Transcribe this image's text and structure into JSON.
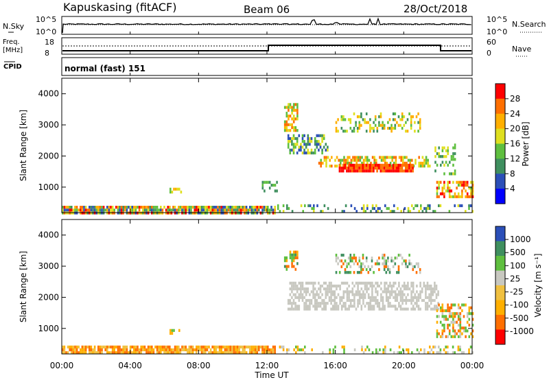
{
  "header": {
    "station": "Kapuskasing (fitACF)",
    "beam": "Beam 06",
    "date": "28/Oct/2018"
  },
  "noise_panel": {
    "left_label": "N.Sky",
    "right_label": "N.Search",
    "left_ticks": [
      "10^5",
      "10^0"
    ],
    "right_ticks": [
      "10^5",
      "10^0"
    ]
  },
  "freq_panel": {
    "left_label_1": "Freq.",
    "left_label_2": "[MHz]",
    "left_label_3": "CPID",
    "right_label": "Nave",
    "left_ticks": [
      "18",
      "8"
    ],
    "right_ticks": [
      "60",
      "0"
    ]
  },
  "cpid_text": "normal (fast) 151",
  "colors": {
    "power": [
      "#0000ff",
      "#2b4fb8",
      "#3f8f5f",
      "#5fbf3f",
      "#dfdf1f",
      "#ffaf00",
      "#ff6f00",
      "#ff0000"
    ],
    "velocity": [
      "#ff0000",
      "#ff6f00",
      "#ffaf00",
      "#f0c040",
      "#c8c8c0",
      "#5fbf3f",
      "#3f8f5f",
      "#2b4fb8"
    ]
  },
  "chart_data": [
    {
      "type": "heatmap",
      "name": "power",
      "ylabel": "Slant Range [km]",
      "yticks": [
        "4000",
        "3000",
        "2000",
        "1000"
      ],
      "ylim": [
        180,
        4500
      ],
      "colorbar_label": "Power [dB]",
      "colorbar_ticks": [
        "28",
        "24",
        "20",
        "16",
        "12",
        "8",
        "4"
      ],
      "colorbar_range": [
        0,
        30
      ],
      "regions": [
        {
          "t": [
            0,
            12.5
          ],
          "r": [
            200,
            400
          ],
          "levels": [
            1,
            2,
            3,
            4,
            5,
            6,
            7
          ],
          "density": 0.9
        },
        {
          "t": [
            6.3,
            7.0
          ],
          "r": [
            870,
            980
          ],
          "levels": [
            3,
            4,
            5
          ],
          "density": 0.6
        },
        {
          "t": [
            11.7,
            12.6
          ],
          "r": [
            900,
            1200
          ],
          "levels": [
            2,
            3
          ],
          "density": 0.5
        },
        {
          "t": [
            13.0,
            13.8
          ],
          "r": [
            2800,
            3700
          ],
          "levels": [
            3,
            4,
            5,
            6
          ],
          "density": 0.6
        },
        {
          "t": [
            13.2,
            15.5
          ],
          "r": [
            2100,
            2700
          ],
          "levels": [
            1,
            2,
            3,
            4
          ],
          "density": 0.55
        },
        {
          "t": [
            15.0,
            21.5
          ],
          "r": [
            1700,
            2000
          ],
          "levels": [
            3,
            4,
            5,
            6
          ],
          "density": 0.55
        },
        {
          "t": [
            16.2,
            20.5
          ],
          "r": [
            1500,
            1750
          ],
          "levels": [
            6,
            7
          ],
          "density": 0.9
        },
        {
          "t": [
            16.0,
            21.0
          ],
          "r": [
            2800,
            3400
          ],
          "levels": [
            2,
            3,
            4,
            5
          ],
          "density": 0.35
        },
        {
          "t": [
            21.9,
            24.0
          ],
          "r": [
            700,
            1200
          ],
          "levels": [
            3,
            4,
            5,
            6,
            7
          ],
          "density": 0.6
        },
        {
          "t": [
            21.8,
            23.0
          ],
          "r": [
            1400,
            2400
          ],
          "levels": [
            2,
            3,
            4
          ],
          "density": 0.35
        },
        {
          "t": [
            12.6,
            24.0
          ],
          "r": [
            200,
            450
          ],
          "levels": [
            1,
            2,
            3,
            4
          ],
          "density": 0.25
        }
      ]
    },
    {
      "type": "heatmap",
      "name": "velocity",
      "ylabel": "Slant Range [km]",
      "yticks": [
        "4000",
        "3000",
        "2000",
        "1000"
      ],
      "ylim": [
        180,
        4500
      ],
      "colorbar_label": "Velocity [m s⁻¹]",
      "colorbar_ticks": [
        "1000",
        "500",
        "100",
        "25",
        "-25",
        "-100",
        "-500",
        "-1000"
      ],
      "regions": [
        {
          "t": [
            0,
            12.5
          ],
          "r": [
            200,
            450
          ],
          "levels": [
            2,
            3,
            1
          ],
          "density": 0.85
        },
        {
          "t": [
            6.3,
            7.0
          ],
          "r": [
            880,
            980
          ],
          "levels": [
            2,
            5
          ],
          "density": 0.5
        },
        {
          "t": [
            13.0,
            13.8
          ],
          "r": [
            2900,
            3500
          ],
          "levels": [
            1,
            2,
            5,
            6
          ],
          "density": 0.55
        },
        {
          "t": [
            13.2,
            22.0
          ],
          "r": [
            1600,
            2500
          ],
          "levels": [
            4
          ],
          "density": 0.6
        },
        {
          "t": [
            16.0,
            21.0
          ],
          "r": [
            2800,
            3400
          ],
          "levels": [
            1,
            4,
            5,
            6
          ],
          "density": 0.35
        },
        {
          "t": [
            21.9,
            24.0
          ],
          "r": [
            700,
            1800
          ],
          "levels": [
            1,
            2,
            4,
            5
          ],
          "density": 0.45
        },
        {
          "t": [
            12.6,
            24.0
          ],
          "r": [
            200,
            450
          ],
          "levels": [
            2,
            4,
            5
          ],
          "density": 0.25
        }
      ]
    }
  ],
  "xaxis": {
    "label": "Time UT",
    "ticks": [
      "00:00",
      "04:00",
      "08:00",
      "12:00",
      "16:00",
      "20:00",
      "00:00"
    ],
    "range_hours": [
      0,
      24
    ]
  }
}
